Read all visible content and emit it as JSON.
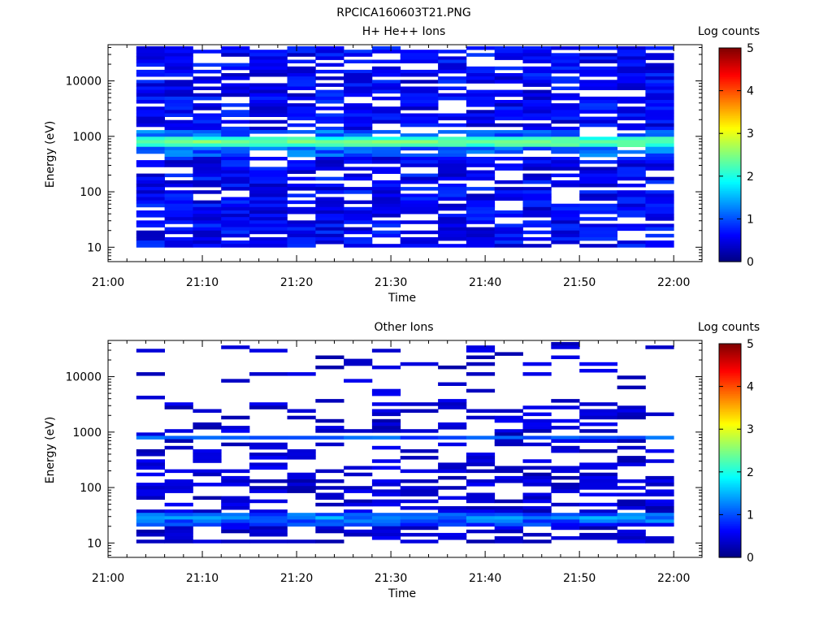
{
  "figure": {
    "title": "RPCICA160603T21.PNG"
  },
  "colorbar": {
    "label": "Log counts",
    "ticks": [
      "0",
      "1",
      "2",
      "3",
      "4",
      "5"
    ],
    "range": [
      0,
      5
    ],
    "colormap": "jet"
  },
  "chart_data": [
    {
      "type": "heatmap",
      "title": "H+ He++ Ions",
      "xlabel": "Time",
      "ylabel": "Energy (eV)",
      "x_ticks": [
        "21:00",
        "21:10",
        "21:20",
        "21:30",
        "21:40",
        "21:50",
        "22:00"
      ],
      "xlim": [
        "21:00",
        "22:03"
      ],
      "y_scale": "log",
      "ylim": [
        5.5,
        45000
      ],
      "y_ticks": [
        "10",
        "100",
        "1000",
        "10000"
      ],
      "time_bins": [
        "21:03",
        "21:06",
        "21:09",
        "21:12",
        "21:15",
        "21:19",
        "21:22",
        "21:25",
        "21:28",
        "21:31",
        "21:35",
        "21:38",
        "21:41",
        "21:44",
        "21:47",
        "21:50",
        "21:54",
        "21:57"
      ],
      "energy_bin_count": 60,
      "energy_top": 42000,
      "energy_range_observed": [
        10,
        42000
      ],
      "peak_band_energy": 780,
      "peak_band_log_counts": 2.5,
      "background_log_counts": 0.3,
      "colorbar_range": [
        0,
        5
      ]
    },
    {
      "type": "heatmap",
      "title": "Other Ions",
      "xlabel": "Time",
      "ylabel": "Energy (eV)",
      "x_ticks": [
        "21:00",
        "21:10",
        "21:20",
        "21:30",
        "21:40",
        "21:50",
        "22:00"
      ],
      "xlim": [
        "21:00",
        "22:03"
      ],
      "y_scale": "log",
      "ylim": [
        5.5,
        45000
      ],
      "y_ticks": [
        "10",
        "100",
        "1000",
        "10000"
      ],
      "time_bins": [
        "21:03",
        "21:06",
        "21:09",
        "21:12",
        "21:15",
        "21:19",
        "21:22",
        "21:25",
        "21:28",
        "21:31",
        "21:35",
        "21:38",
        "21:41",
        "21:44",
        "21:47",
        "21:50",
        "21:54",
        "21:57"
      ],
      "energy_bin_count": 60,
      "energy_top": 42000,
      "energy_range_observed": [
        10,
        42000
      ],
      "band_energies": [
        780,
        28
      ],
      "band_log_counts": [
        1.0,
        1.3
      ],
      "background_log_counts": 0.2,
      "colorbar_range": [
        0,
        5
      ]
    }
  ]
}
